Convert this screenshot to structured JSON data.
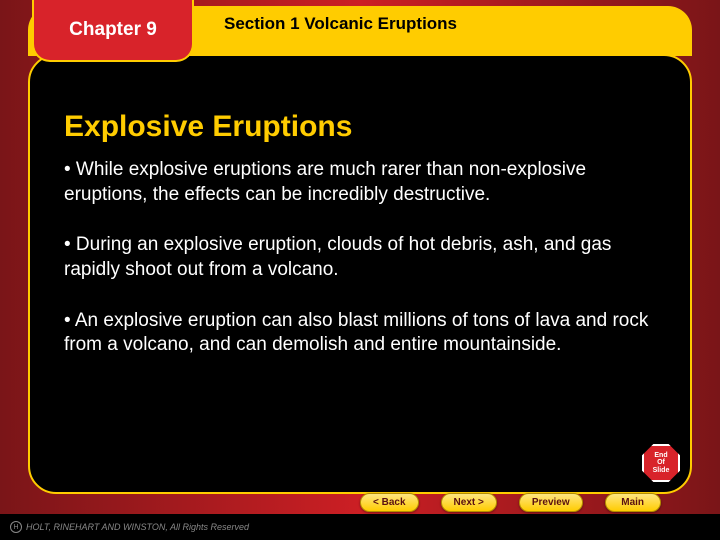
{
  "chapter": {
    "label": "Chapter 9"
  },
  "section": {
    "label": "Section 1  Volcanic Eruptions"
  },
  "title": "Explosive Eruptions",
  "bullets": [
    "• While explosive eruptions are much rarer than non-explosive eruptions, the effects can be incredibly destructive.",
    "• During an explosive eruption, clouds of hot debris, ash, and gas rapidly shoot out from a volcano.",
    "• An explosive eruption can also blast millions of tons of lava and rock from a volcano, and can demolish and entire mountainside."
  ],
  "endBadge": {
    "line1": "End",
    "line2": "Of",
    "line3": "Slide"
  },
  "nav": {
    "back": "<   Back",
    "next": "Next   >",
    "preview": "Preview",
    "main": "Main"
  },
  "copyright": "HOLT, RINEHART AND WINSTON, All Rights Reserved",
  "colors": {
    "accent": "#ffcc00",
    "panel": "#000000",
    "tab": "#d8232a",
    "bgDark": "#7a1518",
    "bgMid": "#cc1f24"
  }
}
